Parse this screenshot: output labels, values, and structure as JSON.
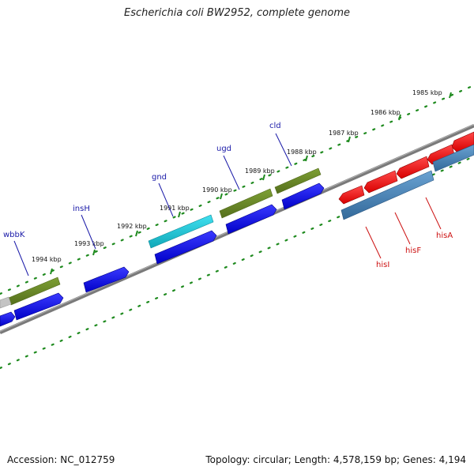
{
  "title": "Escherichia coli BW2952, complete genome",
  "accession_text": "Accession: NC_012759",
  "summary_text": "Topology: circular; Length: 4,578,159 bp; Genes: 4,194",
  "scale_labels": [
    "1985 kbp",
    "1986 kbp",
    "1987 kbp",
    "1988 kbp",
    "1989 kbp",
    "1990 kbp",
    "1991 kbp",
    "1992 kbp",
    "1993 kbp",
    "1994 kbp"
  ],
  "gene_labels": [
    {
      "text": "cld",
      "strand": "forward",
      "color": "#1a1aa8"
    },
    {
      "text": "ugd",
      "strand": "forward",
      "color": "#1a1aa8"
    },
    {
      "text": "gnd",
      "strand": "forward",
      "color": "#1a1aa8"
    },
    {
      "text": "insH",
      "strand": "forward",
      "color": "#1a1aa8"
    },
    {
      "text": "wbbK",
      "strand": "forward",
      "color": "#1a1aa8"
    },
    {
      "text": "hisI",
      "strand": "reverse",
      "color": "#cc1111"
    },
    {
      "text": "hisF",
      "strand": "reverse",
      "color": "#cc1111"
    },
    {
      "text": "hisA",
      "strand": "reverse",
      "color": "#cc1111"
    }
  ],
  "colors": {
    "backbone": "#808080",
    "ruler": "#1e8a1e",
    "forward_gene": "#1010e8",
    "reverse_gene": "#ee1010",
    "olive_feature": "#6b8e23",
    "cyan_feature": "#20c8d8",
    "grey_feature": "#c0c0c0",
    "steel_feature": "#4a82b4"
  }
}
